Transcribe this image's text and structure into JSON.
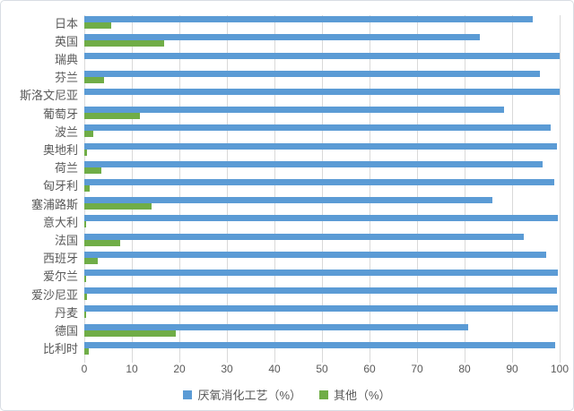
{
  "chart_data": {
    "type": "bar",
    "orientation": "horizontal",
    "title": "",
    "xlabel": "",
    "ylabel": "",
    "xlim": [
      0,
      100
    ],
    "x_ticks": [
      0,
      10,
      20,
      30,
      40,
      50,
      60,
      70,
      80,
      90,
      100
    ],
    "grid": true,
    "legend_position": "bottom",
    "categories": [
      "日本",
      "英国",
      "瑞典",
      "芬兰",
      "斯洛文尼亚",
      "葡萄牙",
      "波兰",
      "奥地利",
      "荷兰",
      "匈牙利",
      "塞浦路斯",
      "意大利",
      "法国",
      "西班牙",
      "爱尔兰",
      "爱沙尼亚",
      "丹麦",
      "德国",
      "比利时"
    ],
    "series": [
      {
        "name": "厌氧消化工艺（%）",
        "color": "#5b9bd5",
        "values": [
          94.4,
          83.2,
          100,
          95.8,
          100,
          88.3,
          98.1,
          99.4,
          96.4,
          98.9,
          85.8,
          99.6,
          92.4,
          97.1,
          99.7,
          99.5,
          99.6,
          80.8,
          99.1
        ]
      },
      {
        "name": "其他（%）",
        "color": "#70ad47",
        "values": [
          5.6,
          16.8,
          0,
          4.2,
          0,
          11.7,
          1.9,
          0.6,
          3.6,
          1.1,
          14.2,
          0.4,
          7.6,
          2.9,
          0.3,
          0.5,
          0.4,
          19.2,
          0.9
        ]
      }
    ]
  },
  "styles": {
    "bar_blue": "#5b9bd5",
    "bar_green": "#70ad47",
    "grid_color": "#d9d9d9",
    "text_color": "#595959",
    "background": "#ffffff"
  }
}
